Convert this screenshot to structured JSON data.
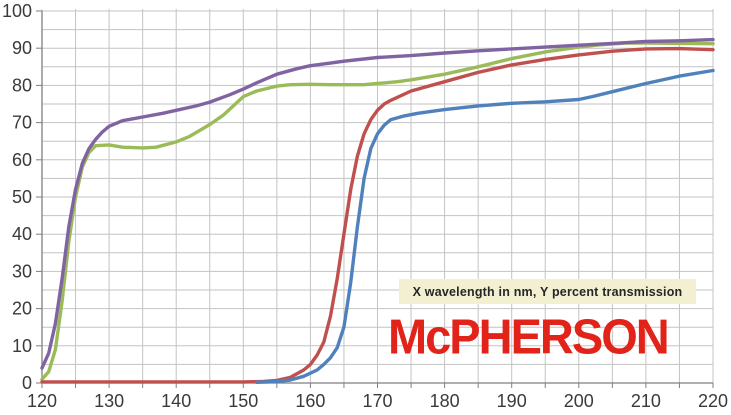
{
  "chart_data": {
    "type": "line",
    "title": "",
    "xlabel": "X wavelength in nm",
    "ylabel": "Y percent transmission",
    "xlim": [
      120,
      220
    ],
    "ylim": [
      0,
      100
    ],
    "grid": true,
    "grid_step": 5,
    "tick_label_step": 10,
    "legend": false,
    "x_tick_labels": [
      "120",
      "130",
      "140",
      "150",
      "160",
      "170",
      "180",
      "190",
      "200",
      "210",
      "220"
    ],
    "y_tick_labels": [
      "0",
      "10",
      "20",
      "30",
      "40",
      "50",
      "60",
      "70",
      "80",
      "90",
      "100"
    ],
    "series": [
      {
        "name": "green-curve",
        "color": "#9BBB59",
        "x": [
          120,
          121,
          122,
          123,
          124,
          125,
          126,
          127,
          128,
          130,
          132,
          135,
          137,
          140,
          142,
          145,
          147,
          150,
          152,
          155,
          157,
          160,
          163,
          165,
          168,
          170,
          173,
          175,
          180,
          185,
          190,
          195,
          200,
          203,
          207,
          210,
          215,
          220
        ],
        "y": [
          1,
          3,
          9,
          22,
          38,
          50,
          58,
          62,
          63.8,
          64,
          63.4,
          63.2,
          63.4,
          64.8,
          66.3,
          69.5,
          72,
          77,
          78.5,
          79.8,
          80.2,
          80.3,
          80.2,
          80.2,
          80.2,
          80.5,
          81,
          81.5,
          83,
          85,
          87.2,
          89,
          90.3,
          90.9,
          91.4,
          91.4,
          91.3,
          91.2
        ]
      },
      {
        "name": "purple-curve",
        "color": "#8064A2",
        "x": [
          120,
          121,
          122,
          123,
          124,
          125,
          126,
          127,
          128,
          129,
          130,
          132,
          135,
          138,
          140,
          143,
          145,
          148,
          150,
          152,
          155,
          158,
          160,
          163,
          165,
          170,
          175,
          180,
          185,
          190,
          195,
          200,
          205,
          210,
          215,
          220
        ],
        "y": [
          4,
          8,
          16,
          28,
          42,
          52,
          59,
          63,
          65.5,
          67.5,
          69,
          70.5,
          71.5,
          72.5,
          73.3,
          74.5,
          75.5,
          77.5,
          79,
          80.7,
          83,
          84.5,
          85.3,
          86,
          86.5,
          87.5,
          88,
          88.7,
          89.3,
          89.8,
          90.3,
          90.8,
          91.3,
          91.8,
          92,
          92.3
        ]
      },
      {
        "name": "red-curve",
        "color": "#C0504D",
        "x": [
          120,
          150,
          153,
          155,
          157,
          159,
          160,
          161,
          162,
          163,
          164,
          165,
          166,
          167,
          168,
          169,
          170,
          171,
          172,
          175,
          180,
          185,
          190,
          195,
          200,
          205,
          210,
          215,
          220
        ],
        "y": [
          0.3,
          0.3,
          0.4,
          0.7,
          1.5,
          3.5,
          5,
          7.5,
          11,
          18,
          28,
          40,
          52,
          61,
          67,
          70.8,
          73.3,
          75,
          76,
          78.5,
          81,
          83.5,
          85.5,
          87,
          88.2,
          89.2,
          89.8,
          89.9,
          89.6
        ]
      },
      {
        "name": "blue-curve",
        "color": "#4F81BD",
        "x": [
          152,
          155,
          157,
          159,
          161,
          162,
          163,
          164,
          165,
          166,
          167,
          168,
          169,
          170,
          171,
          172,
          174,
          176,
          180,
          185,
          190,
          195,
          200,
          202,
          205,
          210,
          215,
          220
        ],
        "y": [
          0.2,
          0.4,
          0.8,
          1.8,
          3.5,
          5,
          6.8,
          9.5,
          15,
          27,
          42,
          55,
          63,
          67,
          69.3,
          70.8,
          71.8,
          72.5,
          73.5,
          74.5,
          75.2,
          75.6,
          76.2,
          77,
          78.3,
          80.5,
          82.5,
          84
        ]
      }
    ],
    "colors": {
      "gridline": "#c3c3c3",
      "axis": "#7f7f7f",
      "tick_label": "#3a3a3a",
      "background": "#ffffff"
    }
  },
  "annotation": {
    "text": "X wavelength in nm, Y percent transmission",
    "bg": "#F3F0D2"
  },
  "logo": {
    "text": "McPHERSON",
    "color": "#E2231A"
  }
}
